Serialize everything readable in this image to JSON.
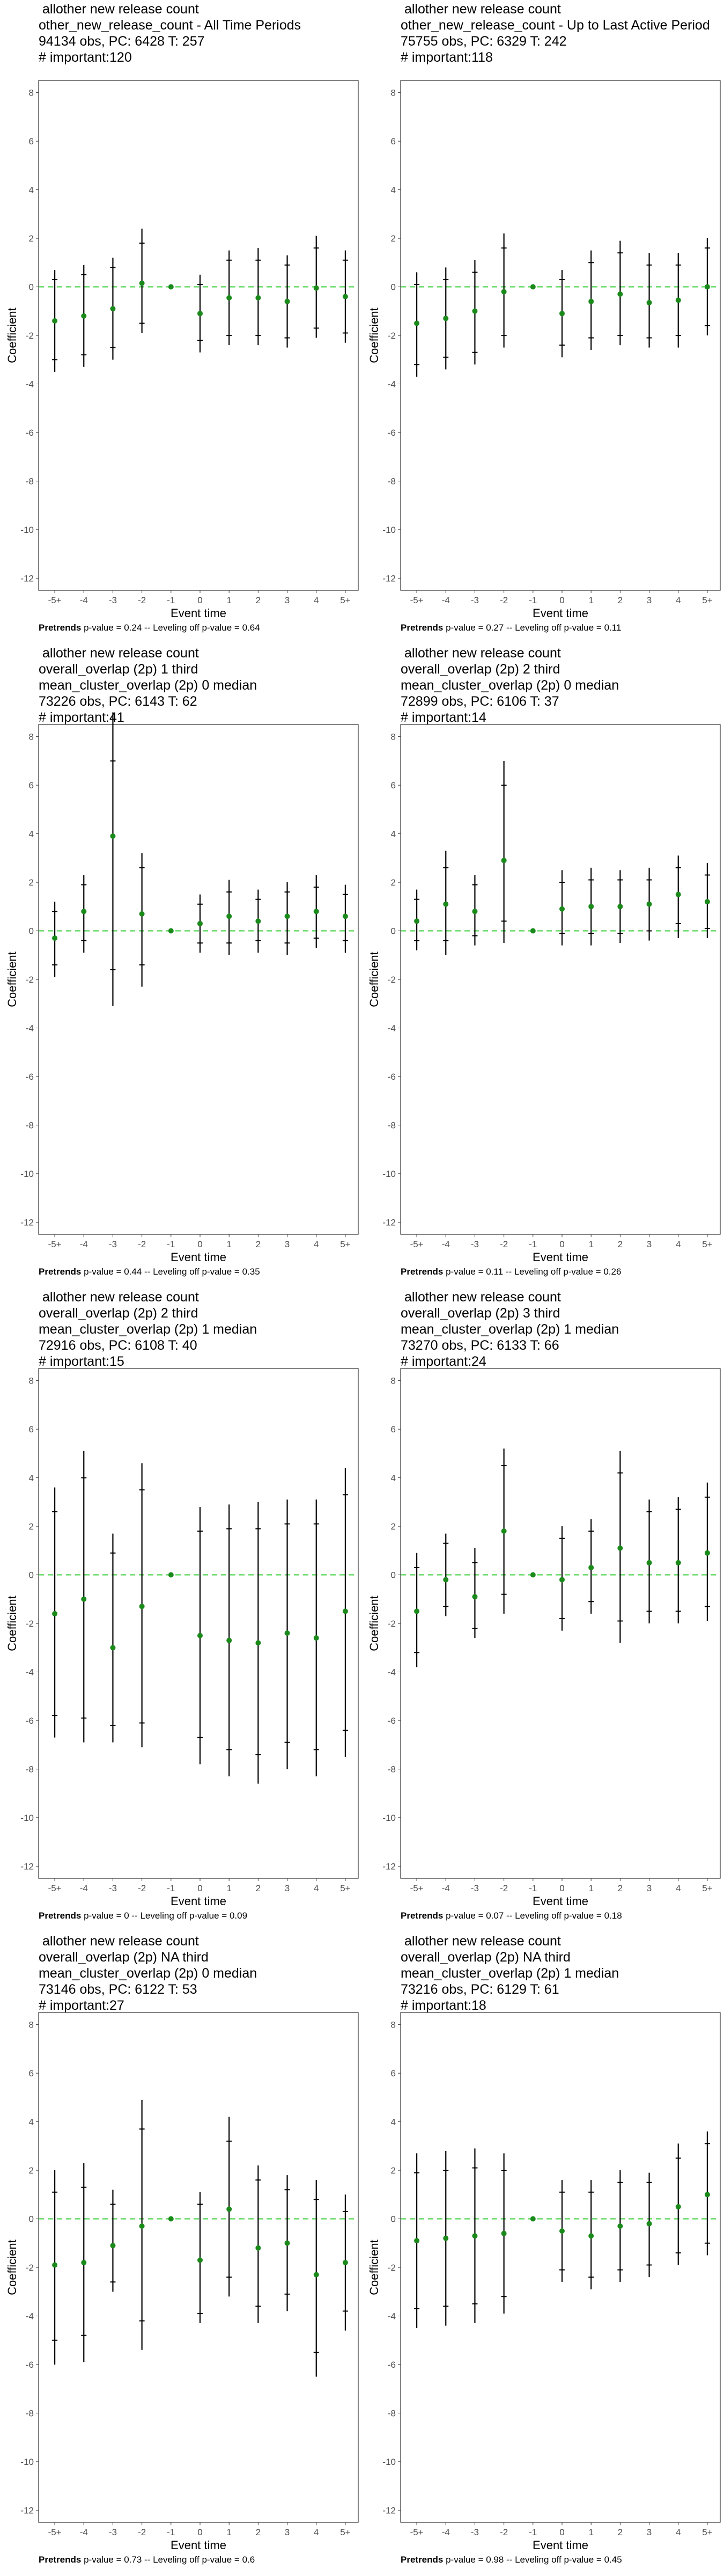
{
  "chart_data": [
    {
      "type": "errorbar",
      "title_lines": [
        "allother new release count",
        "other_new_release_count - All Time Periods",
        "94134 obs, PC: 6428 T: 257",
        "# important:120"
      ],
      "xlabel": "Event time",
      "ylabel": "Coefficient",
      "categories": [
        "-5+",
        "-4",
        "-3",
        "-2",
        "-1",
        "0",
        "1",
        "2",
        "3",
        "4",
        "5+"
      ],
      "ylim": [
        -12.5,
        8.5
      ],
      "yticks": [
        -12,
        -10,
        -8,
        -6,
        -4,
        -2,
        0,
        2,
        4,
        6,
        8
      ],
      "values": [
        -1.4,
        -1.2,
        -0.9,
        0.15,
        0.0,
        -1.1,
        -0.45,
        -0.45,
        -0.6,
        -0.05,
        -0.4
      ],
      "ci_outer": [
        [
          -3.5,
          0.7
        ],
        [
          -3.3,
          0.9
        ],
        [
          -3.0,
          1.2
        ],
        [
          -1.9,
          2.4
        ],
        [
          0,
          0
        ],
        [
          -2.7,
          0.5
        ],
        [
          -2.4,
          1.5
        ],
        [
          -2.4,
          1.6
        ],
        [
          -2.5,
          1.3
        ],
        [
          -2.1,
          2.1
        ],
        [
          -2.3,
          1.5
        ]
      ],
      "ci_inner": [
        [
          -3.0,
          0.3
        ],
        [
          -2.8,
          0.5
        ],
        [
          -2.5,
          0.8
        ],
        [
          -1.5,
          1.8
        ],
        [
          0,
          0
        ],
        [
          -2.2,
          0.1
        ],
        [
          -2.0,
          1.1
        ],
        [
          -2.0,
          1.1
        ],
        [
          -2.1,
          0.9
        ],
        [
          -1.7,
          1.6
        ],
        [
          -1.9,
          1.1
        ]
      ],
      "footnote_label": "Pretrends",
      "footnote_text": "p-value = 0.24 -- Leveling off p-value = 0.64"
    },
    {
      "type": "errorbar",
      "title_lines": [
        "allother new release count",
        "other_new_release_count - Up to Last Active Period",
        "75755 obs, PC: 6329 T: 242",
        "# important:118"
      ],
      "xlabel": "Event time",
      "ylabel": "Coefficient",
      "categories": [
        "-5+",
        "-4",
        "-3",
        "-2",
        "-1",
        "0",
        "1",
        "2",
        "3",
        "4",
        "5+"
      ],
      "ylim": [
        -12.5,
        8.5
      ],
      "yticks": [
        -12,
        -10,
        -8,
        -6,
        -4,
        -2,
        0,
        2,
        4,
        6,
        8
      ],
      "values": [
        -1.5,
        -1.3,
        -1.0,
        -0.2,
        0.0,
        -1.1,
        -0.6,
        -0.3,
        -0.65,
        -0.55,
        0.0
      ],
      "ci_outer": [
        [
          -3.7,
          0.6
        ],
        [
          -3.4,
          0.8
        ],
        [
          -3.2,
          1.1
        ],
        [
          -2.5,
          2.2
        ],
        [
          0,
          0
        ],
        [
          -2.9,
          0.7
        ],
        [
          -2.6,
          1.5
        ],
        [
          -2.4,
          1.9
        ],
        [
          -2.5,
          1.4
        ],
        [
          -2.5,
          1.4
        ],
        [
          -2.0,
          2.0
        ]
      ],
      "ci_inner": [
        [
          -3.2,
          0.1
        ],
        [
          -2.9,
          0.3
        ],
        [
          -2.7,
          0.6
        ],
        [
          -2.0,
          1.6
        ],
        [
          0,
          0
        ],
        [
          -2.4,
          0.3
        ],
        [
          -2.1,
          1.0
        ],
        [
          -2.0,
          1.4
        ],
        [
          -2.1,
          0.9
        ],
        [
          -2.0,
          0.9
        ],
        [
          -1.6,
          1.6
        ]
      ],
      "footnote_label": "Pretrends",
      "footnote_text": "p-value = 0.27 -- Leveling off p-value = 0.11"
    },
    {
      "type": "errorbar",
      "title_lines": [
        "allother new release count",
        "overall_overlap (2p) 1 third",
        "mean_cluster_overlap (2p) 0 median",
        "73226 obs, PC: 6143 T: 62",
        "# important:41"
      ],
      "xlabel": "Event time",
      "ylabel": "Coefficient",
      "categories": [
        "-5+",
        "-4",
        "-3",
        "-2",
        "-1",
        "0",
        "1",
        "2",
        "3",
        "4",
        "5+"
      ],
      "ylim": [
        -12.5,
        8.5
      ],
      "yticks": [
        -12,
        -10,
        -8,
        -6,
        -4,
        -2,
        0,
        2,
        4,
        6,
        8
      ],
      "values": [
        -0.3,
        0.8,
        3.9,
        0.7,
        0.0,
        0.3,
        0.6,
        0.4,
        0.6,
        0.8,
        0.6
      ],
      "ci_outer": [
        [
          -1.9,
          1.2
        ],
        [
          -0.9,
          2.3
        ],
        [
          -3.1,
          9.0
        ],
        [
          -2.3,
          3.2
        ],
        [
          0,
          0
        ],
        [
          -0.9,
          1.5
        ],
        [
          -1.0,
          2.1
        ],
        [
          -0.9,
          1.7
        ],
        [
          -1.0,
          2.0
        ],
        [
          -0.7,
          2.3
        ],
        [
          -0.9,
          1.9
        ]
      ],
      "ci_inner": [
        [
          -1.4,
          0.8
        ],
        [
          -0.4,
          1.9
        ],
        [
          -1.6,
          7.0
        ],
        [
          -1.4,
          2.6
        ],
        [
          0,
          0
        ],
        [
          -0.5,
          1.1
        ],
        [
          -0.5,
          1.6
        ],
        [
          -0.4,
          1.3
        ],
        [
          -0.5,
          1.6
        ],
        [
          -0.3,
          1.8
        ],
        [
          -0.4,
          1.5
        ]
      ],
      "footnote_label": "Pretrends",
      "footnote_text": "p-value = 0.44 -- Leveling off p-value = 0.35"
    },
    {
      "type": "errorbar",
      "title_lines": [
        "allother new release count",
        "overall_overlap (2p) 2 third",
        "mean_cluster_overlap (2p) 0 median",
        "72899 obs, PC: 6106 T: 37",
        "# important:14"
      ],
      "xlabel": "Event time",
      "ylabel": "Coefficient",
      "categories": [
        "-5+",
        "-4",
        "-3",
        "-2",
        "-1",
        "0",
        "1",
        "2",
        "3",
        "4",
        "5+"
      ],
      "ylim": [
        -12.5,
        8.5
      ],
      "yticks": [
        -12,
        -10,
        -8,
        -6,
        -4,
        -2,
        0,
        2,
        4,
        6,
        8
      ],
      "values": [
        0.4,
        1.1,
        0.8,
        2.9,
        0.0,
        0.9,
        1.0,
        1.0,
        1.1,
        1.5,
        1.2
      ],
      "ci_outer": [
        [
          -0.8,
          1.7
        ],
        [
          -1.0,
          3.3
        ],
        [
          -0.6,
          2.3
        ],
        [
          -0.5,
          7.0
        ],
        [
          0,
          0
        ],
        [
          -0.6,
          2.5
        ],
        [
          -0.6,
          2.6
        ],
        [
          -0.5,
          2.5
        ],
        [
          -0.4,
          2.6
        ],
        [
          -0.3,
          3.1
        ],
        [
          -0.3,
          2.8
        ]
      ],
      "ci_inner": [
        [
          -0.4,
          1.3
        ],
        [
          -0.4,
          2.6
        ],
        [
          -0.2,
          1.9
        ],
        [
          0.4,
          6.0
        ],
        [
          0,
          0
        ],
        [
          -0.1,
          2.0
        ],
        [
          -0.1,
          2.1
        ],
        [
          -0.1,
          2.1
        ],
        [
          0.0,
          2.1
        ],
        [
          0.3,
          2.6
        ],
        [
          0.1,
          2.3
        ]
      ],
      "footnote_label": "Pretrends",
      "footnote_text": "p-value = 0.11 -- Leveling off p-value = 0.26"
    },
    {
      "type": "errorbar",
      "title_lines": [
        "allother new release count",
        "overall_overlap (2p) 2 third",
        "mean_cluster_overlap (2p) 1 median",
        "72916 obs, PC: 6108 T: 40",
        "# important:15"
      ],
      "xlabel": "Event time",
      "ylabel": "Coefficient",
      "categories": [
        "-5+",
        "-4",
        "-3",
        "-2",
        "-1",
        "0",
        "1",
        "2",
        "3",
        "4",
        "5+"
      ],
      "ylim": [
        -12.5,
        8.5
      ],
      "yticks": [
        -12,
        -10,
        -8,
        -6,
        -4,
        -2,
        0,
        2,
        4,
        6,
        8
      ],
      "values": [
        -1.6,
        -1.0,
        -3.0,
        -1.3,
        0.0,
        -2.5,
        -2.7,
        -2.8,
        -2.4,
        -2.6,
        -1.5
      ],
      "ci_outer": [
        [
          -6.7,
          3.6
        ],
        [
          -6.9,
          5.1
        ],
        [
          -6.9,
          1.7
        ],
        [
          -7.1,
          4.6
        ],
        [
          0,
          0
        ],
        [
          -7.8,
          2.8
        ],
        [
          -8.3,
          2.9
        ],
        [
          -8.6,
          3.0
        ],
        [
          -8.0,
          3.1
        ],
        [
          -8.3,
          3.1
        ],
        [
          -7.5,
          4.4
        ]
      ],
      "ci_inner": [
        [
          -5.8,
          2.6
        ],
        [
          -5.9,
          4.0
        ],
        [
          -6.2,
          0.9
        ],
        [
          -6.1,
          3.5
        ],
        [
          0,
          0
        ],
        [
          -6.7,
          1.8
        ],
        [
          -7.2,
          1.9
        ],
        [
          -7.4,
          1.9
        ],
        [
          -6.9,
          2.1
        ],
        [
          -7.2,
          2.1
        ],
        [
          -6.4,
          3.3
        ]
      ],
      "footnote_label": "Pretrends",
      "footnote_text": "p-value = 0 -- Leveling off p-value = 0.09"
    },
    {
      "type": "errorbar",
      "title_lines": [
        "allother new release count",
        "overall_overlap (2p) 3 third",
        "mean_cluster_overlap (2p) 1 median",
        "73270 obs, PC: 6133 T: 66",
        "# important:24"
      ],
      "xlabel": "Event time",
      "ylabel": "Coefficient",
      "categories": [
        "-5+",
        "-4",
        "-3",
        "-2",
        "-1",
        "0",
        "1",
        "2",
        "3",
        "4",
        "5+"
      ],
      "ylim": [
        -12.5,
        8.5
      ],
      "yticks": [
        -12,
        -10,
        -8,
        -6,
        -4,
        -2,
        0,
        2,
        4,
        6,
        8
      ],
      "values": [
        -1.5,
        -0.2,
        -0.9,
        1.8,
        0.0,
        -0.2,
        0.3,
        1.1,
        0.5,
        0.5,
        0.9
      ],
      "ci_outer": [
        [
          -3.8,
          0.9
        ],
        [
          -1.7,
          1.7
        ],
        [
          -2.6,
          1.1
        ],
        [
          -1.6,
          5.2
        ],
        [
          0,
          0
        ],
        [
          -2.3,
          2.0
        ],
        [
          -1.6,
          2.3
        ],
        [
          -2.8,
          5.1
        ],
        [
          -2.0,
          3.1
        ],
        [
          -2.0,
          3.2
        ],
        [
          -1.9,
          3.8
        ]
      ],
      "ci_inner": [
        [
          -3.2,
          0.3
        ],
        [
          -1.3,
          1.3
        ],
        [
          -2.2,
          0.5
        ],
        [
          -0.8,
          4.5
        ],
        [
          0,
          0
        ],
        [
          -1.8,
          1.5
        ],
        [
          -1.1,
          1.8
        ],
        [
          -1.9,
          4.2
        ],
        [
          -1.5,
          2.6
        ],
        [
          -1.5,
          2.7
        ],
        [
          -1.3,
          3.2
        ]
      ],
      "footnote_label": "Pretrends",
      "footnote_text": "p-value = 0.07 -- Leveling off p-value = 0.18"
    },
    {
      "type": "errorbar",
      "title_lines": [
        "allother new release count",
        "overall_overlap (2p) NA third",
        "mean_cluster_overlap (2p) 0 median",
        "73146 obs, PC: 6122 T: 53",
        "# important:27"
      ],
      "xlabel": "Event time",
      "ylabel": "Coefficient",
      "categories": [
        "-5+",
        "-4",
        "-3",
        "-2",
        "-1",
        "0",
        "1",
        "2",
        "3",
        "4",
        "5+"
      ],
      "ylim": [
        -12.5,
        8.5
      ],
      "yticks": [
        -12,
        -10,
        -8,
        -6,
        -4,
        -2,
        0,
        2,
        4,
        6,
        8
      ],
      "values": [
        -1.9,
        -1.8,
        -1.1,
        -0.3,
        0.0,
        -1.7,
        0.4,
        -1.2,
        -1.0,
        -2.3,
        -1.8
      ],
      "ci_outer": [
        [
          -6.0,
          2.0
        ],
        [
          -5.9,
          2.3
        ],
        [
          -3.0,
          1.2
        ],
        [
          -5.4,
          4.9
        ],
        [
          0,
          0
        ],
        [
          -4.3,
          1.1
        ],
        [
          -3.2,
          4.2
        ],
        [
          -4.3,
          2.2
        ],
        [
          -3.8,
          1.8
        ],
        [
          -6.5,
          1.6
        ],
        [
          -4.6,
          1.0
        ]
      ],
      "ci_inner": [
        [
          -5.0,
          1.1
        ],
        [
          -4.8,
          1.3
        ],
        [
          -2.6,
          0.6
        ],
        [
          -4.2,
          3.7
        ],
        [
          0,
          0
        ],
        [
          -3.9,
          0.6
        ],
        [
          -2.4,
          3.2
        ],
        [
          -3.6,
          1.6
        ],
        [
          -3.1,
          1.2
        ],
        [
          -5.5,
          0.8
        ],
        [
          -3.8,
          0.3
        ]
      ],
      "footnote_label": "Pretrends",
      "footnote_text": "p-value = 0.73 -- Leveling off p-value = 0.6"
    },
    {
      "type": "errorbar",
      "title_lines": [
        "allother new release count",
        "overall_overlap (2p) NA third",
        "mean_cluster_overlap (2p) 1 median",
        "73216 obs, PC: 6129 T: 61",
        "# important:18"
      ],
      "xlabel": "Event time",
      "ylabel": "Coefficient",
      "categories": [
        "-5+",
        "-4",
        "-3",
        "-2",
        "-1",
        "0",
        "1",
        "2",
        "3",
        "4",
        "5+"
      ],
      "ylim": [
        -12.5,
        8.5
      ],
      "yticks": [
        -12,
        -10,
        -8,
        -6,
        -4,
        -2,
        0,
        2,
        4,
        6,
        8
      ],
      "values": [
        -0.9,
        -0.8,
        -0.7,
        -0.6,
        0.0,
        -0.5,
        -0.7,
        -0.3,
        -0.2,
        0.5,
        1.0
      ],
      "ci_outer": [
        [
          -4.5,
          2.7
        ],
        [
          -4.4,
          2.8
        ],
        [
          -4.3,
          2.9
        ],
        [
          -3.9,
          2.7
        ],
        [
          0,
          0
        ],
        [
          -2.6,
          1.6
        ],
        [
          -2.9,
          1.6
        ],
        [
          -2.6,
          2.0
        ],
        [
          -2.4,
          1.9
        ],
        [
          -1.9,
          3.1
        ],
        [
          -1.5,
          3.6
        ]
      ],
      "ci_inner": [
        [
          -3.7,
          1.9
        ],
        [
          -3.6,
          2.0
        ],
        [
          -3.5,
          2.1
        ],
        [
          -3.2,
          2.0
        ],
        [
          0,
          0
        ],
        [
          -2.1,
          1.1
        ],
        [
          -2.4,
          1.1
        ],
        [
          -2.1,
          1.5
        ],
        [
          -1.9,
          1.5
        ],
        [
          -1.4,
          2.5
        ],
        [
          -1.0,
          3.1
        ]
      ],
      "footnote_label": "Pretrends",
      "footnote_text": "p-value = 0.98 -- Leveling off p-value = 0.45"
    }
  ],
  "colors": {
    "point": "#1a8a1a",
    "zero_line": "#33cc33",
    "bar": "#000000",
    "axis_text": "#4d4d4d",
    "panel_border": "#333333"
  }
}
